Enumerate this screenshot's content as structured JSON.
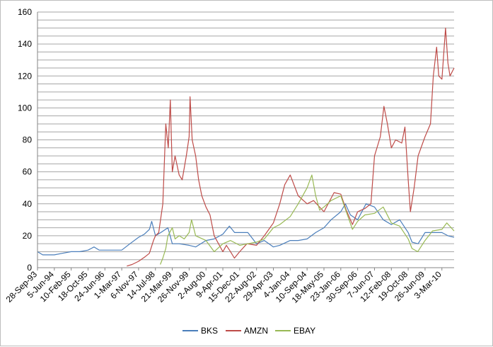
{
  "chart_data": {
    "type": "line",
    "title": "",
    "xlabel": "",
    "ylabel": "",
    "ylim": [
      0,
      160
    ],
    "y_ticks": [
      0,
      20,
      40,
      60,
      80,
      100,
      120,
      140,
      160
    ],
    "y_tick_labels": [
      "0",
      "20",
      "40",
      "60",
      "80",
      "100",
      "120",
      "140",
      "160"
    ],
    "y_gridline_step": 5,
    "grid": "horizontal",
    "legend_position": "bottom",
    "x_range": [
      "1993-09-28",
      "2010-08-31"
    ],
    "x_tick_labels": [
      {
        "label": "28-Sep-93",
        "date": "1993-09-28"
      },
      {
        "label": "5-Jun-94",
        "date": "1994-06-05"
      },
      {
        "label": "10-Feb-95",
        "date": "1995-02-10"
      },
      {
        "label": "18-Oct-95",
        "date": "1995-10-18"
      },
      {
        "label": "24-Jun-96",
        "date": "1996-06-24"
      },
      {
        "label": "1-Mar-97",
        "date": "1997-03-01"
      },
      {
        "label": "6-Nov-97",
        "date": "1997-11-06"
      },
      {
        "label": "14-Jul-98",
        "date": "1998-07-14"
      },
      {
        "label": "21-Mar-99",
        "date": "1999-03-21"
      },
      {
        "label": "26-Nov-99",
        "date": "1999-11-26"
      },
      {
        "label": "2-Aug-00",
        "date": "2000-08-02"
      },
      {
        "label": "9-Apr-01",
        "date": "2001-04-09"
      },
      {
        "label": "15-Dec-01",
        "date": "2001-12-15"
      },
      {
        "label": "22-Aug-02",
        "date": "2002-08-22"
      },
      {
        "label": "29-Apr-03",
        "date": "2003-04-29"
      },
      {
        "label": "4-Jan-04",
        "date": "2004-01-04"
      },
      {
        "label": "10-Sep-04",
        "date": "2004-09-10"
      },
      {
        "label": "18-May-05",
        "date": "2005-05-18"
      },
      {
        "label": "23-Jan-06",
        "date": "2006-01-23"
      },
      {
        "label": "30-Sep-06",
        "date": "2006-09-30"
      },
      {
        "label": "7-Jun-07",
        "date": "2007-06-07"
      },
      {
        "label": "12-Feb-08",
        "date": "2008-02-12"
      },
      {
        "label": "19-Oct-08",
        "date": "2008-10-19"
      },
      {
        "label": "26-Jun-09",
        "date": "2009-06-26"
      },
      {
        "label": "3-Mar-10",
        "date": "2010-03-03"
      }
    ],
    "series": [
      {
        "name": "BKS",
        "color": "#4a7ebb",
        "points": [
          [
            "1993-09-28",
            10
          ],
          [
            "1993-12-15",
            8
          ],
          [
            "1994-03-01",
            8
          ],
          [
            "1994-06-05",
            8
          ],
          [
            "1994-10-01",
            9
          ],
          [
            "1995-02-10",
            10
          ],
          [
            "1995-06-15",
            10
          ],
          [
            "1995-10-18",
            11
          ],
          [
            "1996-01-15",
            13
          ],
          [
            "1996-04-01",
            11
          ],
          [
            "1996-06-24",
            11
          ],
          [
            "1996-10-15",
            11
          ],
          [
            "1997-03-01",
            11
          ],
          [
            "1997-07-01",
            15
          ],
          [
            "1997-11-06",
            19
          ],
          [
            "1998-02-01",
            21
          ],
          [
            "1998-04-15",
            24
          ],
          [
            "1998-05-20",
            29
          ],
          [
            "1998-07-14",
            20
          ],
          [
            "1998-10-01",
            22
          ],
          [
            "1999-01-15",
            25
          ],
          [
            "1999-03-21",
            15
          ],
          [
            "1999-07-01",
            15
          ],
          [
            "1999-11-26",
            14
          ],
          [
            "2000-03-01",
            13
          ],
          [
            "2000-08-02",
            17
          ],
          [
            "2000-12-01",
            18
          ],
          [
            "2001-04-09",
            21
          ],
          [
            "2001-07-15",
            26
          ],
          [
            "2001-10-01",
            22
          ],
          [
            "2001-12-15",
            22
          ],
          [
            "2002-04-15",
            22
          ],
          [
            "2002-08-22",
            15
          ],
          [
            "2002-12-15",
            17
          ],
          [
            "2003-04-29",
            13
          ],
          [
            "2003-08-01",
            14
          ],
          [
            "2004-01-04",
            17
          ],
          [
            "2004-05-01",
            17
          ],
          [
            "2004-09-10",
            18
          ],
          [
            "2005-01-15",
            22
          ],
          [
            "2005-05-18",
            25
          ],
          [
            "2005-09-01",
            30
          ],
          [
            "2006-01-23",
            35
          ],
          [
            "2006-04-01",
            40
          ],
          [
            "2006-06-15",
            33
          ],
          [
            "2006-09-30",
            30
          ],
          [
            "2007-02-01",
            40
          ],
          [
            "2007-06-07",
            38
          ],
          [
            "2007-10-15",
            30
          ],
          [
            "2008-02-12",
            27
          ],
          [
            "2008-06-15",
            30
          ],
          [
            "2008-10-19",
            22
          ],
          [
            "2008-12-15",
            16
          ],
          [
            "2009-03-15",
            15
          ],
          [
            "2009-06-26",
            22
          ],
          [
            "2009-10-15",
            22
          ],
          [
            "2010-03-03",
            22
          ],
          [
            "2010-06-01",
            20
          ],
          [
            "2010-08-31",
            19
          ]
        ]
      },
      {
        "name": "AMZN",
        "color": "#be4b48",
        "points": [
          [
            "1997-05-15",
            1
          ],
          [
            "1997-08-01",
            2
          ],
          [
            "1997-11-06",
            4
          ],
          [
            "1998-02-15",
            7
          ],
          [
            "1998-04-15",
            9
          ],
          [
            "1998-06-15",
            17
          ],
          [
            "1998-07-14",
            20
          ],
          [
            "1998-09-01",
            22
          ],
          [
            "1998-11-01",
            40
          ],
          [
            "1998-12-15",
            90
          ],
          [
            "1999-01-20",
            75
          ],
          [
            "1999-02-20",
            105
          ],
          [
            "1999-03-21",
            60
          ],
          [
            "1999-05-01",
            70
          ],
          [
            "1999-07-01",
            58
          ],
          [
            "1999-08-15",
            55
          ],
          [
            "1999-10-15",
            70
          ],
          [
            "1999-11-26",
            82
          ],
          [
            "1999-12-10",
            107
          ],
          [
            "2000-01-10",
            80
          ],
          [
            "2000-03-01",
            70
          ],
          [
            "2000-04-15",
            55
          ],
          [
            "2000-06-01",
            45
          ],
          [
            "2000-08-02",
            38
          ],
          [
            "2000-10-01",
            33
          ],
          [
            "2000-12-01",
            20
          ],
          [
            "2001-04-09",
            10
          ],
          [
            "2001-06-01",
            14
          ],
          [
            "2001-08-01",
            10
          ],
          [
            "2001-09-28",
            6
          ],
          [
            "2001-12-15",
            10
          ],
          [
            "2002-04-01",
            15
          ],
          [
            "2002-08-22",
            14
          ],
          [
            "2002-12-15",
            20
          ],
          [
            "2003-04-29",
            28
          ],
          [
            "2003-08-01",
            40
          ],
          [
            "2003-10-15",
            52
          ],
          [
            "2004-01-04",
            58
          ],
          [
            "2004-05-01",
            45
          ],
          [
            "2004-09-10",
            40
          ],
          [
            "2004-12-15",
            42
          ],
          [
            "2005-05-18",
            35
          ],
          [
            "2005-10-15",
            47
          ],
          [
            "2006-01-23",
            46
          ],
          [
            "2006-04-15",
            36
          ],
          [
            "2006-07-15",
            27
          ],
          [
            "2006-09-30",
            35
          ],
          [
            "2007-01-15",
            37
          ],
          [
            "2007-04-15",
            40
          ],
          [
            "2007-06-07",
            70
          ],
          [
            "2007-09-01",
            82
          ],
          [
            "2007-10-25",
            101
          ],
          [
            "2007-12-15",
            90
          ],
          [
            "2008-02-12",
            75
          ],
          [
            "2008-04-15",
            80
          ],
          [
            "2008-07-15",
            78
          ],
          [
            "2008-09-01",
            88
          ],
          [
            "2008-10-19",
            55
          ],
          [
            "2008-11-20",
            35
          ],
          [
            "2009-01-15",
            50
          ],
          [
            "2009-03-15",
            70
          ],
          [
            "2009-06-26",
            82
          ],
          [
            "2009-09-15",
            90
          ],
          [
            "2009-10-26",
            120
          ],
          [
            "2009-12-15",
            138
          ],
          [
            "2010-01-15",
            120
          ],
          [
            "2010-03-03",
            118
          ],
          [
            "2010-04-26",
            150
          ],
          [
            "2010-06-01",
            128
          ],
          [
            "2010-07-01",
            120
          ],
          [
            "2010-08-31",
            125
          ]
        ]
      },
      {
        "name": "EBAY",
        "color": "#98b954",
        "points": [
          [
            "1998-09-24",
            2
          ],
          [
            "1998-11-01",
            6
          ],
          [
            "1998-12-15",
            12
          ],
          [
            "1999-01-15",
            20
          ],
          [
            "1999-03-21",
            25
          ],
          [
            "1999-05-01",
            18
          ],
          [
            "1999-07-01",
            20
          ],
          [
            "1999-09-15",
            18
          ],
          [
            "1999-11-26",
            22
          ],
          [
            "2000-01-01",
            30
          ],
          [
            "2000-03-01",
            20
          ],
          [
            "2000-08-02",
            17
          ],
          [
            "2000-12-01",
            10
          ],
          [
            "2001-04-09",
            15
          ],
          [
            "2001-08-01",
            17
          ],
          [
            "2001-12-15",
            14
          ],
          [
            "2002-04-15",
            15
          ],
          [
            "2002-08-22",
            16
          ],
          [
            "2002-12-15",
            18
          ],
          [
            "2003-04-29",
            25
          ],
          [
            "2003-08-01",
            27
          ],
          [
            "2004-01-04",
            32
          ],
          [
            "2004-05-01",
            40
          ],
          [
            "2004-09-10",
            50
          ],
          [
            "2004-11-20",
            58
          ],
          [
            "2005-01-15",
            45
          ],
          [
            "2005-03-15",
            36
          ],
          [
            "2005-05-18",
            38
          ],
          [
            "2005-09-01",
            42
          ],
          [
            "2006-01-23",
            45
          ],
          [
            "2006-04-15",
            35
          ],
          [
            "2006-07-15",
            24
          ],
          [
            "2006-09-30",
            29
          ],
          [
            "2007-01-15",
            33
          ],
          [
            "2007-06-07",
            34
          ],
          [
            "2007-10-15",
            38
          ],
          [
            "2008-02-12",
            28
          ],
          [
            "2008-06-15",
            26
          ],
          [
            "2008-10-19",
            18
          ],
          [
            "2008-12-15",
            12
          ],
          [
            "2009-03-10",
            10
          ],
          [
            "2009-06-26",
            17
          ],
          [
            "2009-10-15",
            23
          ],
          [
            "2010-03-03",
            24
          ],
          [
            "2010-05-15",
            28
          ],
          [
            "2010-08-31",
            23
          ]
        ]
      }
    ]
  }
}
